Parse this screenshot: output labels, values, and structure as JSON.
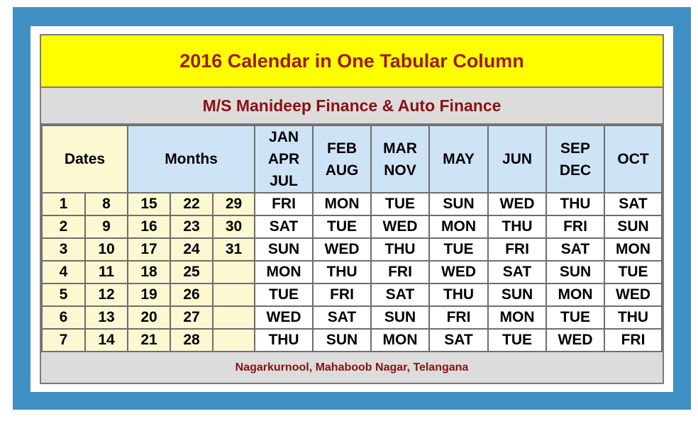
{
  "title": "2016 Calendar in One Tabular Column",
  "subtitle": "M/S Manideep Finance & Auto Finance",
  "footer": "Nagarkurnool, Mahaboob Nagar, Telangana",
  "headers": {
    "dates": "Dates",
    "months": "Months",
    "month_columns": [
      [
        "JAN",
        "APR",
        "JUL"
      ],
      [
        "FEB",
        "AUG"
      ],
      [
        "MAR",
        "NOV"
      ],
      [
        "MAY"
      ],
      [
        "JUN"
      ],
      [
        "SEP",
        "DEC"
      ],
      [
        "OCT"
      ]
    ]
  },
  "rows": [
    {
      "dates": [
        "1",
        "8",
        "15",
        "22",
        "29"
      ],
      "days": [
        "FRI",
        "MON",
        "TUE",
        "SUN",
        "WED",
        "THU",
        "SAT"
      ]
    },
    {
      "dates": [
        "2",
        "9",
        "16",
        "23",
        "30"
      ],
      "days": [
        "SAT",
        "TUE",
        "WED",
        "MON",
        "THU",
        "FRI",
        "SUN"
      ]
    },
    {
      "dates": [
        "3",
        "10",
        "17",
        "24",
        "31"
      ],
      "days": [
        "SUN",
        "WED",
        "THU",
        "TUE",
        "FRI",
        "SAT",
        "MON"
      ]
    },
    {
      "dates": [
        "4",
        "11",
        "18",
        "25",
        ""
      ],
      "days": [
        "MON",
        "THU",
        "FRI",
        "WED",
        "SAT",
        "SUN",
        "TUE"
      ]
    },
    {
      "dates": [
        "5",
        "12",
        "19",
        "26",
        ""
      ],
      "days": [
        "TUE",
        "FRI",
        "SAT",
        "THU",
        "SUN",
        "MON",
        "WED"
      ]
    },
    {
      "dates": [
        "6",
        "13",
        "20",
        "27",
        ""
      ],
      "days": [
        "WED",
        "SAT",
        "SUN",
        "FRI",
        "MON",
        "TUE",
        "THU"
      ]
    },
    {
      "dates": [
        "7",
        "14",
        "21",
        "28",
        ""
      ],
      "days": [
        "THU",
        "SUN",
        "MON",
        "SAT",
        "TUE",
        "WED",
        "FRI"
      ]
    }
  ],
  "colors": {
    "title_bg": "#ffff00",
    "title_text": "#9b1b1b",
    "header_blue": "#cfe3f7",
    "date_cream": "#fbf8d2",
    "frame_blue": "#3f8fc4"
  }
}
